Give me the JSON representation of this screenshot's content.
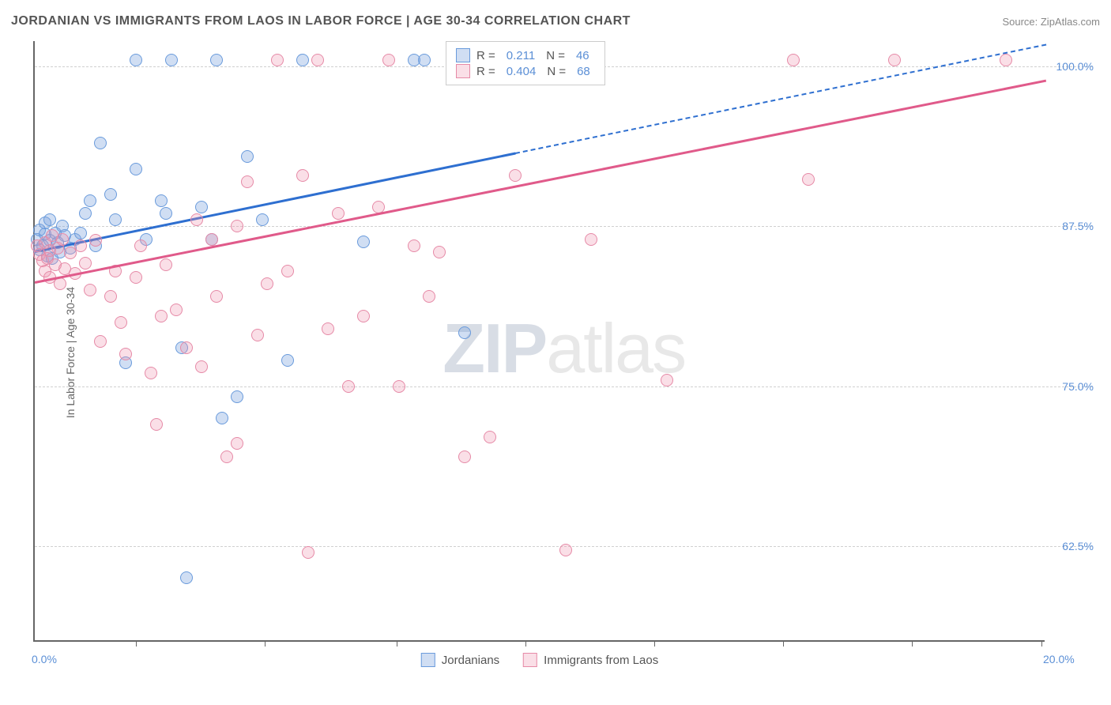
{
  "header": {
    "title": "JORDANIAN VS IMMIGRANTS FROM LAOS IN LABOR FORCE | AGE 30-34 CORRELATION CHART",
    "source": "Source: ZipAtlas.com"
  },
  "chart": {
    "type": "scatter",
    "ylabel": "In Labor Force | Age 30-34",
    "xlim": [
      0,
      20
    ],
    "ylim": [
      55,
      102
    ],
    "xticks": [
      {
        "pos": 0.0,
        "label": "0.0%"
      },
      {
        "pos": 20.0,
        "label": "20.0%"
      }
    ],
    "xtick_marks": [
      2.0,
      4.55,
      7.15,
      9.7,
      12.25,
      14.8,
      17.35,
      19.9
    ],
    "yticks": [
      {
        "pos": 62.5,
        "label": "62.5%"
      },
      {
        "pos": 75.0,
        "label": "75.0%"
      },
      {
        "pos": 87.5,
        "label": "87.5%"
      },
      {
        "pos": 100.0,
        "label": "100.0%"
      }
    ],
    "plot_bg": "#ffffff",
    "grid_color": "#d0d0d0",
    "colors": {
      "blue_fill": "rgba(120,160,220,0.35)",
      "blue_stroke": "#6a9bdc",
      "pink_fill": "rgba(240,150,175,0.30)",
      "pink_stroke": "#e68aa7",
      "blue_line": "#2e6fd0",
      "pink_line": "#e05a8a",
      "label_color": "#5b8fd6"
    },
    "point_radius": 8,
    "series": [
      {
        "name": "Jordanians",
        "color_key": "blue",
        "r": "0.211",
        "n": "46",
        "trend": {
          "x1": 0.0,
          "y1": 85.6,
          "x2": 20.0,
          "y2": 101.8,
          "solid_until_x": 9.5
        },
        "points": [
          [
            0.05,
            86.5
          ],
          [
            0.1,
            87.2
          ],
          [
            0.1,
            85.7
          ],
          [
            0.15,
            86.0
          ],
          [
            0.2,
            86.9
          ],
          [
            0.2,
            87.8
          ],
          [
            0.25,
            85.2
          ],
          [
            0.3,
            86.4
          ],
          [
            0.3,
            88.0
          ],
          [
            0.35,
            85.0
          ],
          [
            0.4,
            87.0
          ],
          [
            0.45,
            86.2
          ],
          [
            0.5,
            85.5
          ],
          [
            0.55,
            87.5
          ],
          [
            0.6,
            86.8
          ],
          [
            0.7,
            85.8
          ],
          [
            0.8,
            86.5
          ],
          [
            0.9,
            87.0
          ],
          [
            1.0,
            88.5
          ],
          [
            1.1,
            89.5
          ],
          [
            1.2,
            86.0
          ],
          [
            1.3,
            94.0
          ],
          [
            1.5,
            90.0
          ],
          [
            1.6,
            88.0
          ],
          [
            1.8,
            76.8
          ],
          [
            2.0,
            92.0
          ],
          [
            2.0,
            100.5
          ],
          [
            2.2,
            86.5
          ],
          [
            2.5,
            89.5
          ],
          [
            2.6,
            88.5
          ],
          [
            2.7,
            100.5
          ],
          [
            2.9,
            78.0
          ],
          [
            3.0,
            60.0
          ],
          [
            3.3,
            89.0
          ],
          [
            3.5,
            86.5
          ],
          [
            3.6,
            100.5
          ],
          [
            3.7,
            72.5
          ],
          [
            4.0,
            74.2
          ],
          [
            4.2,
            93.0
          ],
          [
            4.5,
            88.0
          ],
          [
            5.0,
            77.0
          ],
          [
            5.3,
            100.5
          ],
          [
            6.5,
            86.3
          ],
          [
            7.5,
            100.5
          ],
          [
            7.7,
            100.5
          ],
          [
            8.5,
            79.2
          ]
        ]
      },
      {
        "name": "Immigrants from Laos",
        "color_key": "pink",
        "r": "0.404",
        "n": "68",
        "trend": {
          "x1": 0.0,
          "y1": 83.2,
          "x2": 20.0,
          "y2": 99.0,
          "solid_until_x": 20.0
        },
        "points": [
          [
            0.05,
            86.0
          ],
          [
            0.1,
            85.3
          ],
          [
            0.15,
            84.8
          ],
          [
            0.2,
            86.2
          ],
          [
            0.2,
            84.0
          ],
          [
            0.25,
            85.0
          ],
          [
            0.3,
            85.6
          ],
          [
            0.3,
            83.5
          ],
          [
            0.35,
            86.8
          ],
          [
            0.4,
            84.5
          ],
          [
            0.45,
            85.8
          ],
          [
            0.5,
            83.0
          ],
          [
            0.55,
            86.5
          ],
          [
            0.6,
            84.2
          ],
          [
            0.7,
            85.4
          ],
          [
            0.8,
            83.8
          ],
          [
            0.9,
            86.0
          ],
          [
            1.0,
            84.6
          ],
          [
            1.1,
            82.5
          ],
          [
            1.2,
            86.4
          ],
          [
            1.3,
            78.5
          ],
          [
            1.5,
            82.0
          ],
          [
            1.6,
            84.0
          ],
          [
            1.7,
            80.0
          ],
          [
            1.8,
            77.5
          ],
          [
            2.0,
            83.5
          ],
          [
            2.1,
            86.0
          ],
          [
            2.3,
            76.0
          ],
          [
            2.5,
            80.5
          ],
          [
            2.6,
            84.5
          ],
          [
            2.8,
            81.0
          ],
          [
            3.0,
            78.0
          ],
          [
            3.2,
            88.0
          ],
          [
            3.3,
            76.5
          ],
          [
            3.5,
            86.5
          ],
          [
            3.6,
            82.0
          ],
          [
            3.8,
            69.5
          ],
          [
            4.0,
            87.5
          ],
          [
            4.2,
            91.0
          ],
          [
            4.4,
            79.0
          ],
          [
            4.6,
            83.0
          ],
          [
            4.8,
            100.5
          ],
          [
            5.0,
            84.0
          ],
          [
            5.3,
            91.5
          ],
          [
            5.4,
            62.0
          ],
          [
            5.6,
            100.5
          ],
          [
            5.8,
            79.5
          ],
          [
            6.0,
            88.5
          ],
          [
            6.2,
            75.0
          ],
          [
            6.5,
            80.5
          ],
          [
            6.8,
            89.0
          ],
          [
            7.0,
            100.5
          ],
          [
            7.2,
            75.0
          ],
          [
            7.5,
            86.0
          ],
          [
            7.8,
            82.0
          ],
          [
            8.0,
            85.5
          ],
          [
            8.5,
            69.5
          ],
          [
            9.0,
            71.0
          ],
          [
            9.5,
            91.5
          ],
          [
            10.5,
            62.2
          ],
          [
            11.0,
            86.5
          ],
          [
            12.5,
            75.5
          ],
          [
            15.0,
            100.5
          ],
          [
            15.3,
            91.2
          ],
          [
            17.0,
            100.5
          ],
          [
            19.2,
            100.5
          ],
          [
            4.0,
            70.5
          ],
          [
            2.4,
            72.0
          ]
        ]
      }
    ],
    "legend_box": {
      "rows": [
        {
          "color_key": "blue",
          "r_label": "R =",
          "r_val": "0.211",
          "n_label": "N =",
          "n_val": "46"
        },
        {
          "color_key": "pink",
          "r_label": "R =",
          "r_val": "0.404",
          "n_label": "N =",
          "n_val": "68"
        }
      ]
    },
    "bottom_legend": [
      {
        "color_key": "blue",
        "label": "Jordanians"
      },
      {
        "color_key": "pink",
        "label": "Immigrants from Laos"
      }
    ],
    "watermark": {
      "bold": "ZIP",
      "rest": "atlas"
    }
  }
}
